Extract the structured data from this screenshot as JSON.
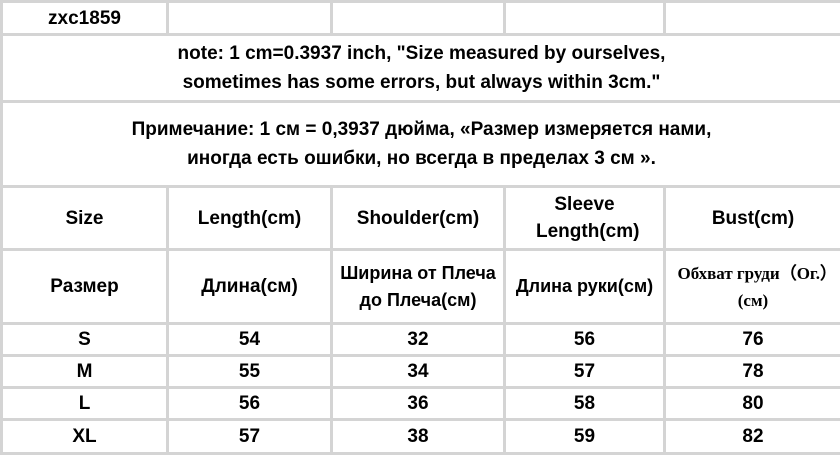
{
  "header": {
    "code": "zxc1859"
  },
  "notes": {
    "english_line1": "note: 1 cm=0.3937 inch, \"Size measured by ourselves,",
    "english_line2": "sometimes has some errors, but always within 3cm.\"",
    "russian_line1": "Примечание: 1 см = 0,3937 дюйма, «Размер измеряется нами,",
    "russian_line2": "иногда есть ошибки, но всегда в пределах 3 см »."
  },
  "columns_en": [
    "Size",
    "Length(cm)",
    "Shoulder(cm)",
    "Sleeve Length(cm)",
    "Bust(cm)"
  ],
  "columns_ru": [
    "Размер",
    "Длина(см)",
    "Ширина от Плеча до Плеча(см)",
    "Длина руки(см)",
    "Обхват груди（Ог.）(см)"
  ],
  "rows": [
    {
      "size": "S",
      "length": "54",
      "shoulder": "32",
      "sleeve": "56",
      "bust": "76"
    },
    {
      "size": "M",
      "length": "55",
      "shoulder": "34",
      "sleeve": "57",
      "bust": "78"
    },
    {
      "size": "L",
      "length": "56",
      "shoulder": "36",
      "sleeve": "58",
      "bust": "80"
    },
    {
      "size": "XL",
      "length": "57",
      "shoulder": "38",
      "sleeve": "59",
      "bust": "82"
    }
  ]
}
